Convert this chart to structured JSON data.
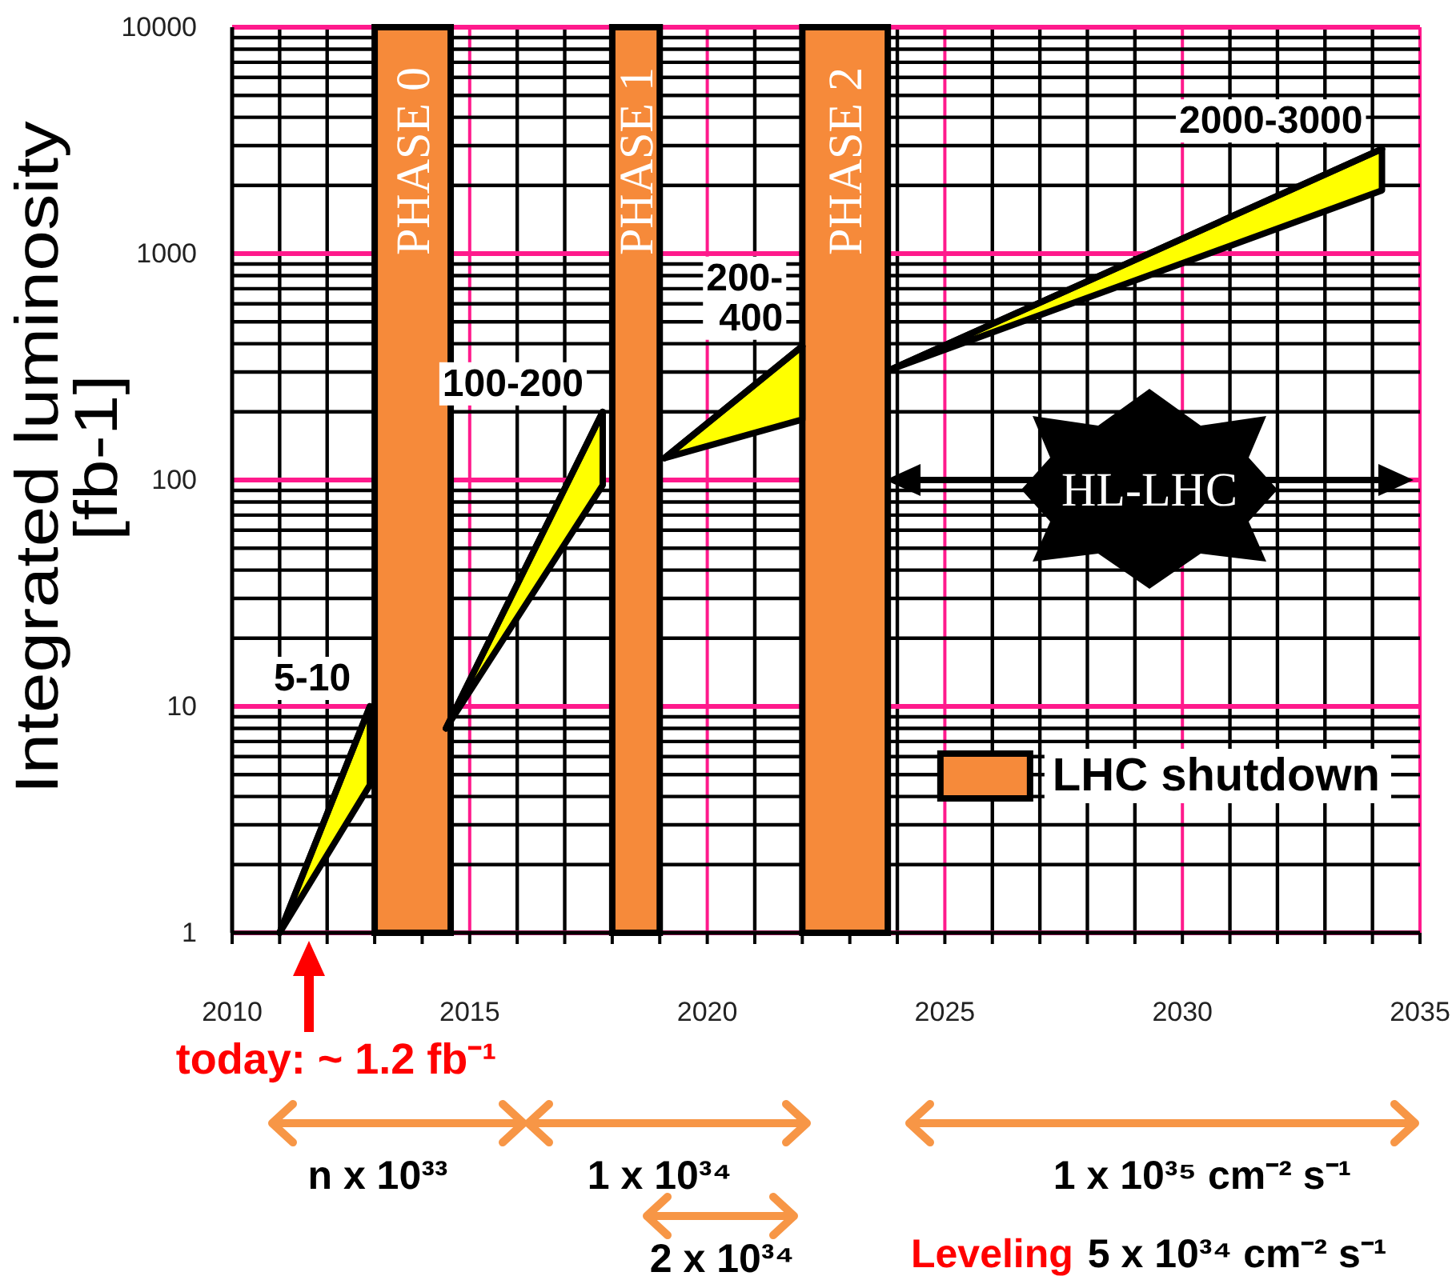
{
  "chart_data": {
    "type": "line",
    "ylabel": "Integrated luminosity\n[fb-1]",
    "xlim": [
      2010,
      2035
    ],
    "xticks": [
      2010,
      2015,
      2020,
      2025,
      2030,
      2035
    ],
    "ylim": [
      1,
      10000
    ],
    "yticks": [
      1,
      10,
      100,
      1000,
      10000
    ],
    "log": true,
    "grid": true,
    "series": [
      {
        "color": "#000000",
        "x": [
          2011,
          2012.9
        ],
        "values": [
          1,
          10
        ],
        "lower": [
          1,
          4.5
        ],
        "upper": [
          1,
          10
        ],
        "value_labels": [
          null,
          "5-10"
        ]
      },
      {
        "color": "#000000",
        "x": [
          2014.5,
          2017.8
        ],
        "values": [
          8,
          200
        ],
        "lower": [
          8,
          95
        ],
        "upper": [
          8,
          200
        ],
        "value_labels": [
          null,
          "100-200"
        ]
      },
      {
        "color": "#000000",
        "x": [
          2019.1,
          2022
        ],
        "values": [
          125,
          390
        ],
        "lower": [
          125,
          185
        ],
        "upper": [
          125,
          390
        ],
        "value_labels": [
          null,
          "200-\n400"
        ]
      },
      {
        "color": "#000000",
        "x": [
          2023.9,
          2034.2
        ],
        "values": [
          310,
          2900
        ],
        "lower": [
          310,
          1900
        ],
        "upper": [
          310,
          2900
        ],
        "value_labels": [
          null,
          "2000-3000"
        ]
      }
    ],
    "bands": [
      {
        "axis": "x",
        "from": 2013,
        "to": 2014.6,
        "label": "PHASE 0",
        "color": "#f68a3a"
      },
      {
        "axis": "x",
        "from": 2018,
        "to": 2019,
        "label": "PHASE 1",
        "color": "#f68a3a"
      },
      {
        "axis": "x",
        "from": 2022,
        "to": 2023.8,
        "label": "PHASE 2",
        "color": "#f68a3a"
      }
    ],
    "annotations": [
      "today: ~ 1.2 fb⁻¹",
      "n x 10³³",
      "1 x 10³⁴",
      "2 x 10³⁴",
      "1 x 10³⁵ cm⁻² s⁻¹",
      "Leveling",
      "5 x 10³⁴ cm⁻² s⁻¹",
      "HL-LHC",
      "LHC shutdown"
    ]
  }
}
